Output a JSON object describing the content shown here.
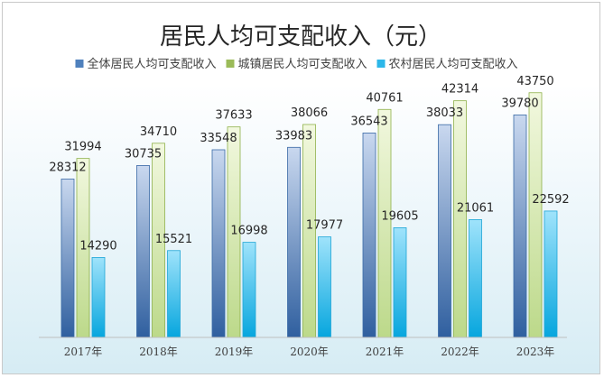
{
  "chart_data": {
    "type": "bar",
    "title": "居民人均可支配收入（元）",
    "categories": [
      "2017年",
      "2018年",
      "2019年",
      "2020年",
      "2021年",
      "2022年",
      "2023年"
    ],
    "series": [
      {
        "name": "全体居民人均可支配收入",
        "values": [
          28312,
          30735,
          33548,
          33983,
          36543,
          38033,
          39780
        ],
        "color": "#4f81bd"
      },
      {
        "name": "城镇居民人均可支配收入",
        "values": [
          31994,
          34710,
          37633,
          38066,
          40761,
          42314,
          43750
        ],
        "color": "#9bbb59"
      },
      {
        "name": "农村居民人均可支配收入",
        "values": [
          14290,
          15521,
          16998,
          17977,
          19605,
          21061,
          22592
        ],
        "color": "#2cb7e9"
      }
    ],
    "ylim": [
      0,
      50000
    ],
    "grid": false,
    "legend": "top",
    "xlabel": "",
    "ylabel": ""
  }
}
